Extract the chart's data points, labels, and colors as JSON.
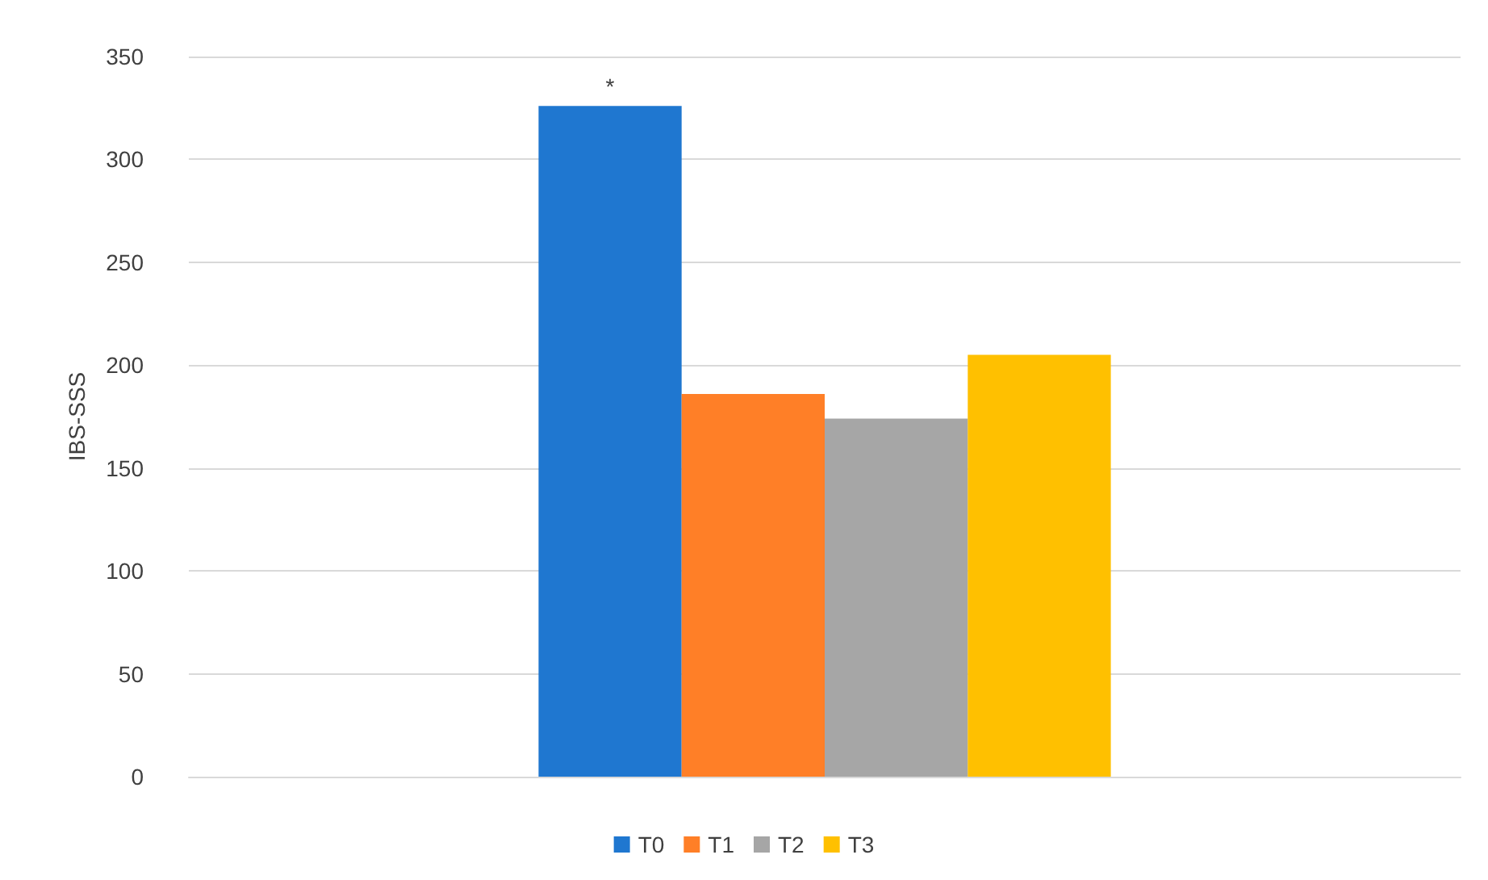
{
  "chart_data": {
    "type": "bar",
    "ylabel": "IBS-SSS",
    "categories": [
      null
    ],
    "series": [
      {
        "name": "T0",
        "color": "#1f77d0",
        "values": [
          326
        ]
      },
      {
        "name": "T1",
        "color": "#ff7f27",
        "values": [
          186
        ]
      },
      {
        "name": "T2",
        "color": "#a6a6a6",
        "values": [
          174
        ]
      },
      {
        "name": "T3",
        "color": "#ffc000",
        "values": [
          205
        ]
      }
    ],
    "ylim": [
      0,
      350
    ],
    "yticks": [
      0,
      50,
      100,
      150,
      200,
      250,
      300,
      350
    ],
    "grid": "y",
    "legend": "bottom",
    "annotations": [
      "*"
    ]
  }
}
